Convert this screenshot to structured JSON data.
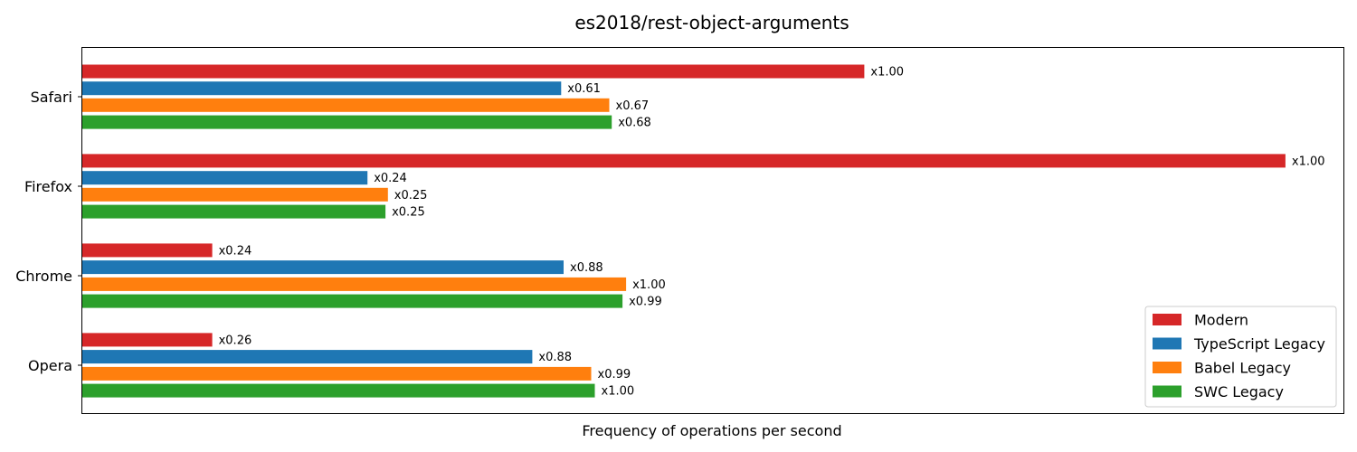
{
  "chart_data": {
    "type": "bar",
    "orientation": "horizontal",
    "title": "es2018/rest-object-arguments",
    "xlabel": "Frequency of operations per second",
    "ylabel": "",
    "categories": [
      "Safari",
      "Firefox",
      "Chrome",
      "Opera"
    ],
    "series": [
      {
        "name": "Modern",
        "color": "#d62728",
        "values": [
          0.65,
          1.0,
          0.108,
          0.108
        ],
        "labels": [
          "x1.00",
          "x1.00",
          "x0.24",
          "x0.26"
        ]
      },
      {
        "name": "TypeScript Legacy",
        "color": "#1f77b4",
        "values": [
          0.398,
          0.237,
          0.4,
          0.374
        ],
        "labels": [
          "x0.61",
          "x0.24",
          "x0.88",
          "x0.88"
        ]
      },
      {
        "name": "Babel Legacy",
        "color": "#ff7f0e",
        "values": [
          0.438,
          0.254,
          0.452,
          0.423
        ],
        "labels": [
          "x0.67",
          "x0.25",
          "x1.00",
          "x0.99"
        ]
      },
      {
        "name": "SWC Legacy",
        "color": "#2ca02c",
        "values": [
          0.44,
          0.252,
          0.449,
          0.426
        ],
        "labels": [
          "x0.68",
          "x0.25",
          "x0.99",
          "x1.00"
        ]
      }
    ],
    "xlim": [
      0,
      1.0482
    ],
    "x_ticks_visible": false,
    "grid": false,
    "legend_position": "lower-right"
  }
}
